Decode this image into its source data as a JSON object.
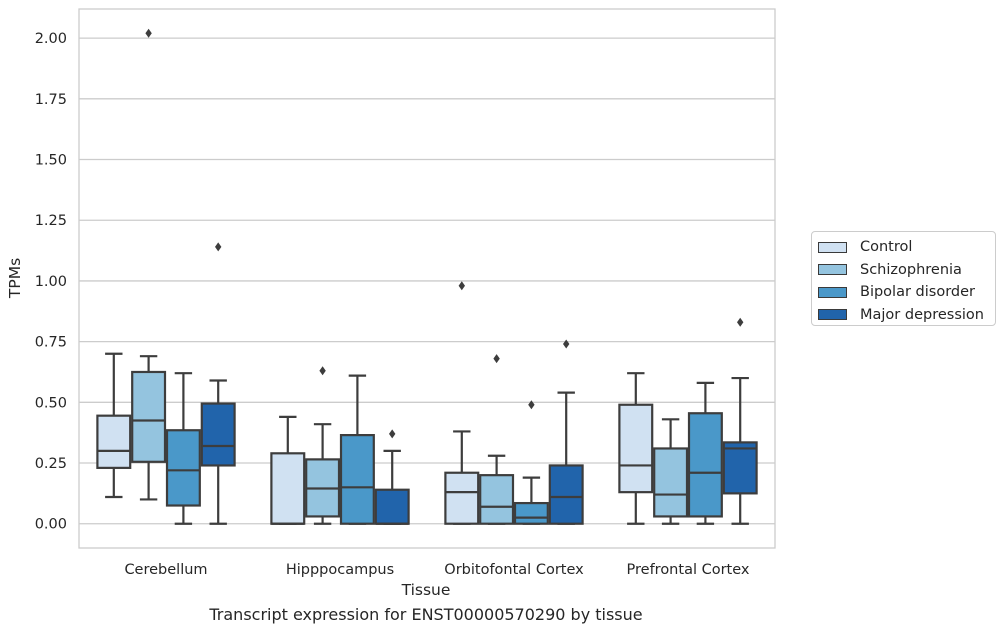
{
  "caption": "Transcript expression for ENST00000570290 by tissue",
  "chart_data": {
    "type": "boxplot",
    "xlabel": "Tissue",
    "ylabel": "TPMs",
    "ylim": [
      -0.1,
      2.12
    ],
    "yticks": [
      "0.00",
      "0.25",
      "0.50",
      "0.75",
      "1.00",
      "1.25",
      "1.50",
      "1.75",
      "2.00"
    ],
    "grid": true,
    "legend_position": "right",
    "categories": [
      "Cerebellum",
      "Hipppocampus",
      "Orbitofontal Cortex",
      "Prefrontal Cortex"
    ],
    "series": [
      {
        "name": "Control",
        "color": "#d0e1f2",
        "boxes": [
          {
            "whislo": 0.11,
            "q1": 0.23,
            "med": 0.3,
            "q3": 0.445,
            "whishi": 0.7,
            "fliers": []
          },
          {
            "whislo": 0.0,
            "q1": 0.0,
            "med": 0.0,
            "q3": 0.29,
            "whishi": 0.44,
            "fliers": []
          },
          {
            "whislo": 0.0,
            "q1": 0.0,
            "med": 0.13,
            "q3": 0.21,
            "whishi": 0.38,
            "fliers": [
              0.98
            ]
          },
          {
            "whislo": 0.0,
            "q1": 0.13,
            "med": 0.24,
            "q3": 0.49,
            "whishi": 0.62,
            "fliers": []
          }
        ]
      },
      {
        "name": "Schizophrenia",
        "color": "#94c4df",
        "boxes": [
          {
            "whislo": 0.1,
            "q1": 0.255,
            "med": 0.425,
            "q3": 0.625,
            "whishi": 0.69,
            "fliers": [
              2.02
            ]
          },
          {
            "whislo": 0.0,
            "q1": 0.03,
            "med": 0.145,
            "q3": 0.265,
            "whishi": 0.41,
            "fliers": [
              0.63
            ]
          },
          {
            "whislo": 0.0,
            "q1": 0.0,
            "med": 0.07,
            "q3": 0.2,
            "whishi": 0.28,
            "fliers": [
              0.68
            ]
          },
          {
            "whislo": 0.0,
            "q1": 0.03,
            "med": 0.12,
            "q3": 0.31,
            "whishi": 0.43,
            "fliers": []
          }
        ]
      },
      {
        "name": "Bipolar disorder",
        "color": "#4a98c9",
        "boxes": [
          {
            "whislo": 0.0,
            "q1": 0.075,
            "med": 0.22,
            "q3": 0.385,
            "whishi": 0.62,
            "fliers": []
          },
          {
            "whislo": 0.0,
            "q1": 0.0,
            "med": 0.15,
            "q3": 0.365,
            "whishi": 0.61,
            "fliers": []
          },
          {
            "whislo": 0.0,
            "q1": 0.0,
            "med": 0.025,
            "q3": 0.085,
            "whishi": 0.19,
            "fliers": [
              0.49
            ]
          },
          {
            "whislo": 0.0,
            "q1": 0.03,
            "med": 0.21,
            "q3": 0.455,
            "whishi": 0.58,
            "fliers": []
          }
        ]
      },
      {
        "name": "Major depression",
        "color": "#2164ab",
        "boxes": [
          {
            "whislo": 0.0,
            "q1": 0.24,
            "med": 0.32,
            "q3": 0.495,
            "whishi": 0.59,
            "fliers": [
              1.14
            ]
          },
          {
            "whislo": 0.0,
            "q1": 0.0,
            "med": 0.0,
            "q3": 0.14,
            "whishi": 0.3,
            "fliers": [
              0.37
            ]
          },
          {
            "whislo": 0.0,
            "q1": 0.0,
            "med": 0.11,
            "q3": 0.24,
            "whishi": 0.54,
            "fliers": [
              0.74
            ]
          },
          {
            "whislo": 0.0,
            "q1": 0.125,
            "med": 0.31,
            "q3": 0.335,
            "whishi": 0.6,
            "fliers": [
              0.83
            ]
          }
        ]
      }
    ]
  }
}
